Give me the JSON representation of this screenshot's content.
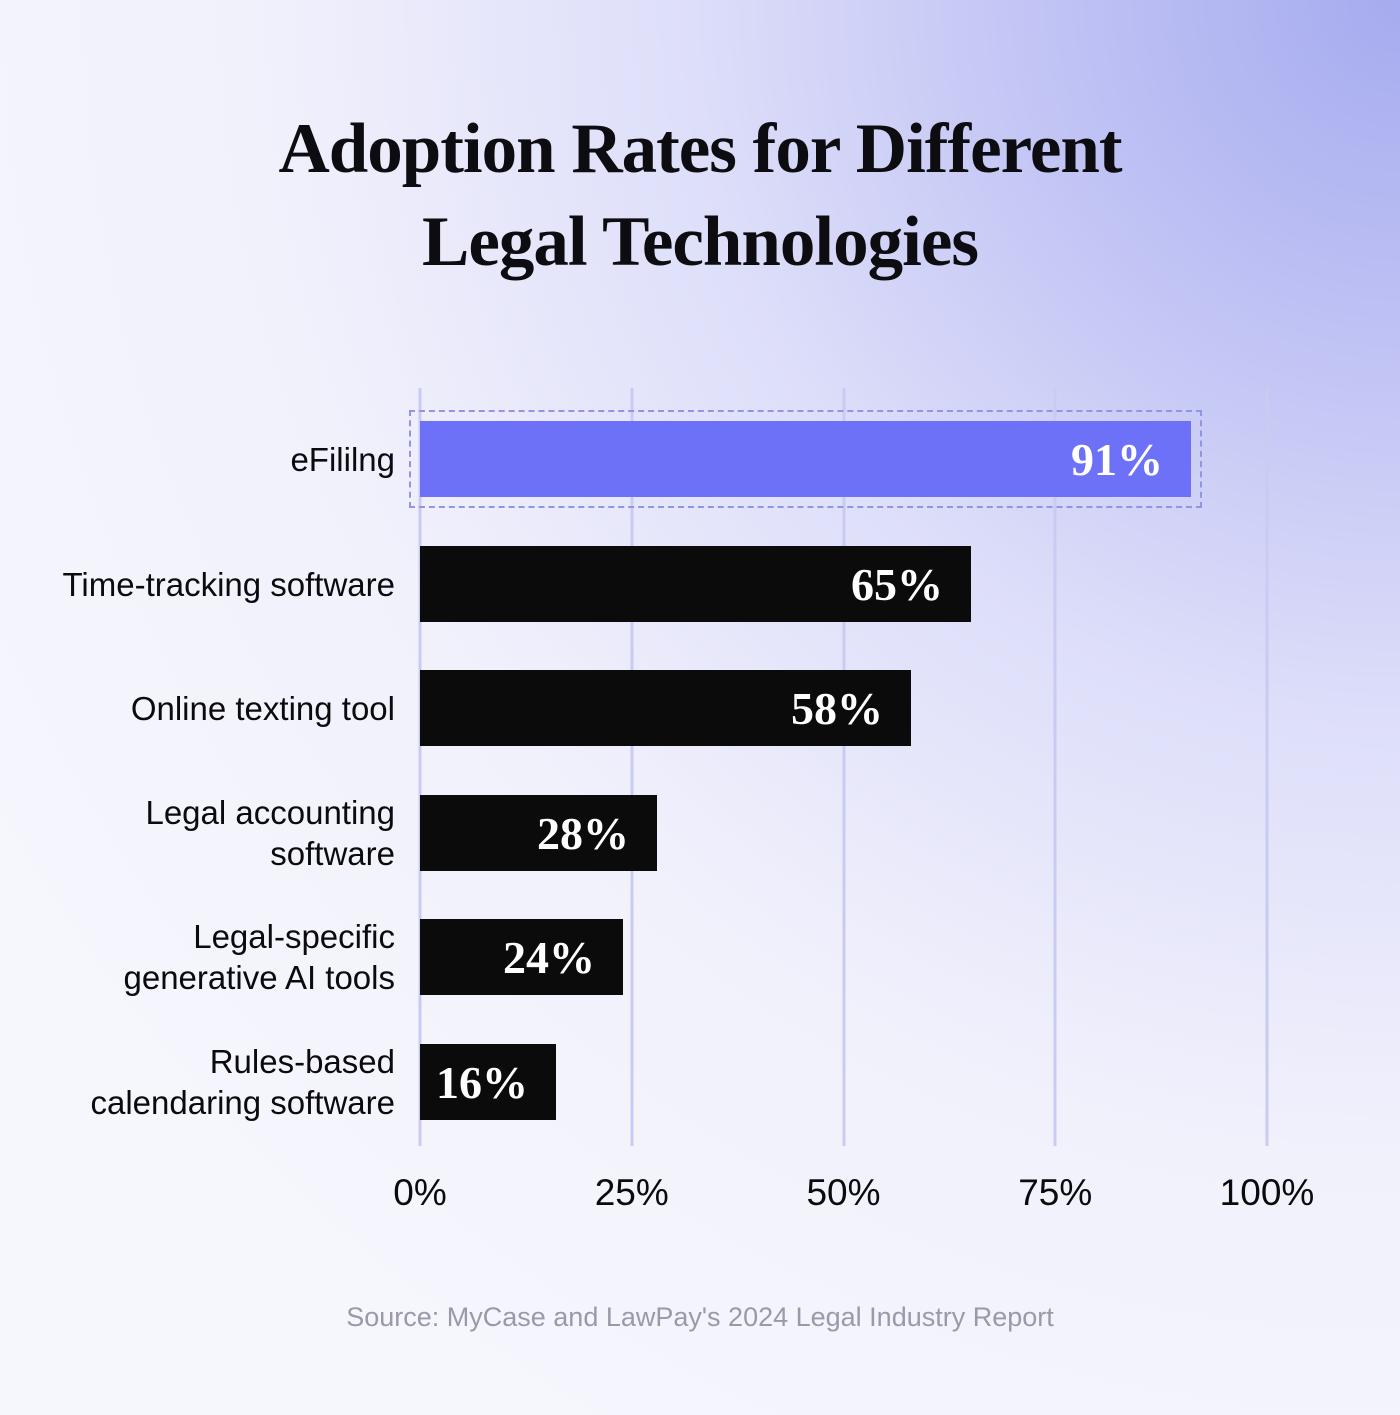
{
  "page": {
    "title_lines": [
      "Adoption Rates for Different",
      "Legal Technologies"
    ],
    "source": "Source: MyCase and LawPay's 2024 Legal Industry Report"
  },
  "chart_data": {
    "type": "bar",
    "orientation": "horizontal",
    "title": "Adoption Rates for Different Legal Technologies",
    "categories": [
      "eFililng",
      "Time-tracking software",
      "Online texting tool",
      "Legal accounting software",
      "Legal-specific generative AI tools",
      "Rules-based calendaring software"
    ],
    "values": [
      91,
      65,
      58,
      28,
      24,
      16
    ],
    "xlabel": "",
    "ylabel": "",
    "xlim": [
      0,
      100
    ],
    "x_ticks": [
      "0%",
      "25%",
      "50%",
      "75%",
      "100%"
    ],
    "x_tick_values": [
      0,
      25,
      50,
      75,
      100
    ],
    "grid": true,
    "legend": false,
    "highlighted_index": 0,
    "colors": {
      "highlight_bar": "#6c71f8",
      "default_bar": "#0b0b0b",
      "value_text": "#ffffff",
      "gridline": "#c9cbf3",
      "highlight_outline": "#9196e3",
      "title_text": "#0c0c11",
      "source_text": "#9a99a8"
    },
    "bars": [
      {
        "label": "eFililng",
        "value": 91,
        "display": "91%",
        "highlighted": true
      },
      {
        "label": "Time-tracking software",
        "value": 65,
        "display": "65%",
        "highlighted": false
      },
      {
        "label": "Online texting tool",
        "value": 58,
        "display": "58%",
        "highlighted": false
      },
      {
        "label": "Legal accounting software",
        "value": 28,
        "display": "28%",
        "highlighted": false
      },
      {
        "label": "Legal-specific generative AI tools",
        "value": 24,
        "display": "24%",
        "highlighted": false
      },
      {
        "label": "Rules-based calendaring software",
        "value": 16,
        "display": "16%",
        "highlighted": false
      }
    ],
    "source": "Source: MyCase and LawPay's 2024 Legal Industry Report"
  }
}
